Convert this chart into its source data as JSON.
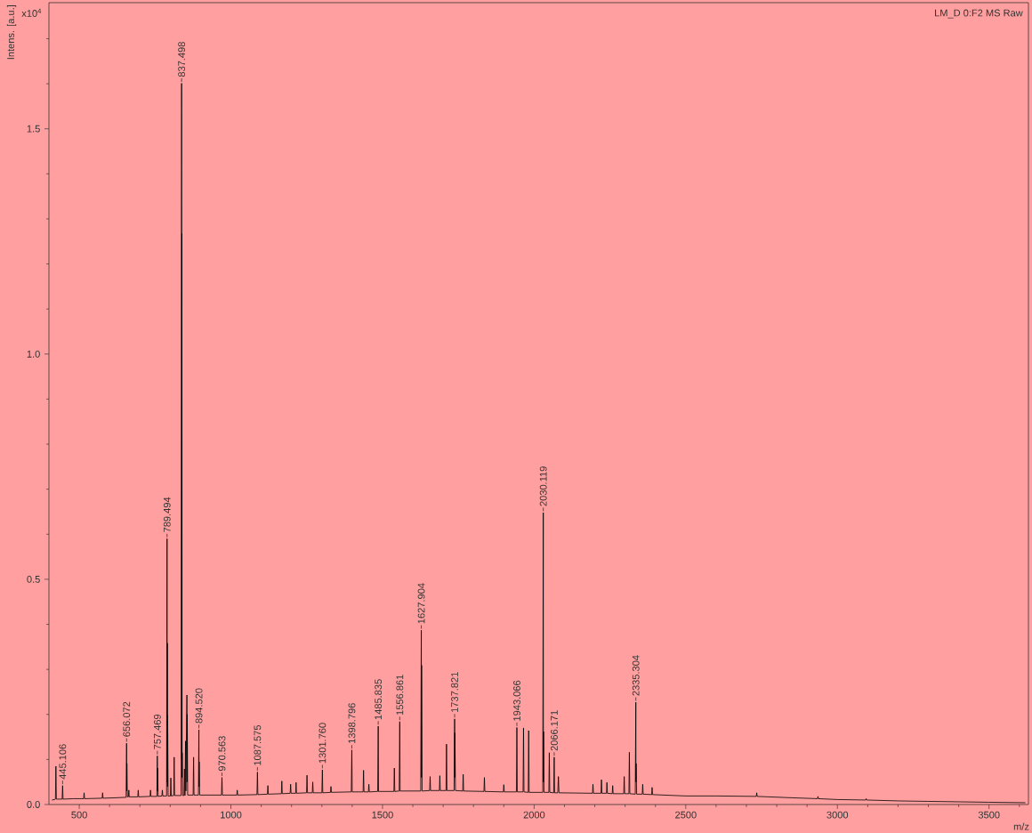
{
  "chart_data": {
    "type": "line",
    "title": "LM_D 0:F2 MS Raw",
    "xlabel": "m/z",
    "ylabel": "Intens. [a.u.]",
    "color": "#000000",
    "annotations": [
      "x10$^{4}$",
      {
        "text": "445.106",
        "x": 445.106,
        "y": 0.042
      },
      {
        "text": "656.072",
        "x": 656.072,
        "y": 0.136
      },
      {
        "text": "757.469",
        "x": 757.469,
        "y": 0.108
      },
      {
        "text": "789.494",
        "x": 789.494,
        "y": 0.59
      },
      {
        "text": "837.498",
        "x": 837.498,
        "y": 1.601
      },
      {
        "text": "894.520",
        "x": 894.52,
        "y": 0.166
      },
      {
        "text": "970.563",
        "x": 970.563,
        "y": 0.06
      },
      {
        "text": "1087.575",
        "x": 1087.575,
        "y": 0.072
      },
      {
        "text": "1301.760",
        "x": 1301.76,
        "y": 0.077
      },
      {
        "text": "1398.796",
        "x": 1398.796,
        "y": 0.121
      },
      {
        "text": "1485.835",
        "x": 1485.835,
        "y": 0.174
      },
      {
        "text": "1556.861",
        "x": 1556.861,
        "y": 0.184
      },
      {
        "text": "1627.904",
        "x": 1627.904,
        "y": 0.387
      },
      {
        "text": "1737.821",
        "x": 1737.821,
        "y": 0.19
      },
      {
        "text": "1943.066",
        "x": 1943.066,
        "y": 0.171
      },
      {
        "text": "2030.119",
        "x": 2030.119,
        "y": 0.648
      },
      {
        "text": "2066.171",
        "x": 2066.171,
        "y": 0.105
      },
      {
        "text": "2335.304",
        "x": 2335.304,
        "y": 0.227
      }
    ],
    "x": [
      410,
      418,
      421.5,
      423,
      424.5,
      443.5,
      445.106,
      446.5,
      480,
      514.5,
      516,
      517.5,
      575.5,
      577,
      578.5,
      620,
      654.5,
      656.072,
      656.6,
      657.1,
      658.5,
      662,
      663.5,
      665,
      693,
      694.5,
      696,
      733.5,
      735,
      736.5,
      756,
      757.469,
      758,
      758.5,
      760,
      772.5,
      774,
      775.5,
      788,
      789.494,
      790,
      790.5,
      791,
      791.5,
      793,
      800.5,
      802,
      803.5,
      811.5,
      813,
      814.5,
      836,
      837.498,
      838,
      838.5,
      839,
      839.5,
      841,
      845.5,
      847,
      848.5,
      850.5,
      851.5,
      855,
      855.5,
      856,
      857.5,
      875.5,
      877,
      878.5,
      893,
      894.52,
      895,
      895.5,
      897,
      969,
      970.563,
      972,
      1019.5,
      1021,
      1022.5,
      1086,
      1087.575,
      1089,
      1120.5,
      1122,
      1123.5,
      1166.5,
      1168,
      1169.5,
      1195.5,
      1197,
      1198.5,
      1213.5,
      1215,
      1216.5,
      1249.5,
      1251,
      1252.5,
      1268.5,
      1270,
      1271.5,
      1300,
      1301.76,
      1303,
      1328.5,
      1330,
      1331.5,
      1397,
      1398.796,
      1400,
      1436,
      1437.5,
      1439,
      1453.5,
      1455,
      1456.5,
      1484,
      1485.835,
      1487,
      1537.5,
      1539,
      1540.5,
      1555,
      1556.861,
      1558,
      1626,
      1627.904,
      1628.4,
      1628.9,
      1630.5,
      1655.5,
      1657,
      1658.5,
      1687.5,
      1689,
      1690.5,
      1709.5,
      1711,
      1712.5,
      1736,
      1737.821,
      1738.3,
      1738.8,
      1740.5,
      1764.5,
      1766,
      1767.5,
      1834.5,
      1836,
      1837.5,
      1898.5,
      1900,
      1901.5,
      1941.5,
      1943.066,
      1944.5,
      1963.5,
      1965,
      1966.5,
      1980.5,
      1982,
      1983.5,
      2028.5,
      2030.119,
      2030.6,
      2031.1,
      2032.5,
      2048.5,
      2050,
      2051.5,
      2064.5,
      2066.171,
      2067.5,
      2078,
      2080,
      2082,
      2192.5,
      2194,
      2195.5,
      2220.5,
      2222,
      2223.5,
      2238.5,
      2240,
      2241.5,
      2257.5,
      2259,
      2260.5,
      2295.5,
      2297,
      2298.5,
      2312.5,
      2314,
      2315.5,
      2333.5,
      2335.304,
      2335.8,
      2336.3,
      2338,
      2356.5,
      2358,
      2359.5,
      2387.5,
      2389,
      2390.5,
      2500,
      2600,
      2732.5,
      2734,
      2735.5,
      2850,
      2934.5,
      2936,
      2937.5,
      3000,
      3093.5,
      3095,
      3096.5,
      3200,
      3300,
      3400,
      3500,
      3620
    ],
    "values": [
      0.01,
      0.011,
      0.012,
      0.085,
      0.012,
      0.012,
      0.042,
      0.012,
      0.013,
      0.013,
      0.026,
      0.013,
      0.014,
      0.026,
      0.014,
      0.015,
      0.016,
      0.136,
      0.03,
      0.091,
      0.017,
      0.017,
      0.032,
      0.017,
      0.017,
      0.032,
      0.017,
      0.018,
      0.032,
      0.018,
      0.018,
      0.108,
      0.03,
      0.081,
      0.018,
      0.019,
      0.032,
      0.019,
      0.019,
      0.59,
      0.05,
      0.358,
      0.04,
      0.198,
      0.019,
      0.019,
      0.059,
      0.019,
      0.02,
      0.105,
      0.02,
      0.02,
      1.601,
      0.1,
      1.267,
      0.06,
      0.115,
      0.02,
      0.02,
      0.079,
      0.02,
      0.141,
      0.03,
      0.243,
      0.05,
      0.2,
      0.021,
      0.021,
      0.105,
      0.021,
      0.021,
      0.166,
      0.04,
      0.095,
      0.021,
      0.021,
      0.06,
      0.021,
      0.021,
      0.032,
      0.021,
      0.022,
      0.072,
      0.022,
      0.023,
      0.042,
      0.023,
      0.024,
      0.052,
      0.024,
      0.025,
      0.045,
      0.025,
      0.025,
      0.049,
      0.025,
      0.026,
      0.065,
      0.026,
      0.026,
      0.05,
      0.026,
      0.026,
      0.077,
      0.026,
      0.027,
      0.04,
      0.027,
      0.028,
      0.121,
      0.028,
      0.028,
      0.076,
      0.028,
      0.028,
      0.045,
      0.028,
      0.029,
      0.174,
      0.029,
      0.029,
      0.081,
      0.029,
      0.03,
      0.184,
      0.03,
      0.03,
      0.387,
      0.06,
      0.309,
      0.03,
      0.031,
      0.062,
      0.031,
      0.031,
      0.064,
      0.031,
      0.031,
      0.134,
      0.031,
      0.031,
      0.19,
      0.06,
      0.159,
      0.031,
      0.03,
      0.067,
      0.03,
      0.029,
      0.06,
      0.029,
      0.028,
      0.044,
      0.028,
      0.028,
      0.171,
      0.028,
      0.028,
      0.17,
      0.028,
      0.027,
      0.164,
      0.027,
      0.027,
      0.648,
      0.05,
      0.162,
      0.027,
      0.027,
      0.115,
      0.027,
      0.026,
      0.105,
      0.026,
      0.026,
      0.062,
      0.026,
      0.025,
      0.045,
      0.025,
      0.025,
      0.055,
      0.025,
      0.025,
      0.049,
      0.025,
      0.024,
      0.042,
      0.024,
      0.024,
      0.062,
      0.024,
      0.024,
      0.116,
      0.024,
      0.023,
      0.227,
      0.05,
      0.091,
      0.023,
      0.023,
      0.045,
      0.023,
      0.022,
      0.038,
      0.022,
      0.019,
      0.019,
      0.018,
      0.026,
      0.018,
      0.015,
      0.013,
      0.018,
      0.013,
      0.011,
      0.01,
      0.013,
      0.01,
      0.008,
      0.007,
      0.006,
      0.005,
      0.004
    ],
    "xlim": [
      400,
      3630
    ],
    "ylim": [
      0,
      1.78
    ],
    "xticks": [
      500,
      {
        "value": 600,
        "label": null
      },
      {
        "value": 700,
        "label": null
      },
      {
        "value": 800,
        "label": null
      },
      {
        "value": 900,
        "label": null
      },
      1000,
      {
        "value": 1100,
        "label": null
      },
      {
        "value": 1200,
        "label": null
      },
      {
        "value": 1300,
        "label": null
      },
      {
        "value": 1400,
        "label": null
      },
      1500,
      {
        "value": 1600,
        "label": null
      },
      {
        "value": 1700,
        "label": null
      },
      {
        "value": 1800,
        "label": null
      },
      {
        "value": 1900,
        "label": null
      },
      2000,
      {
        "value": 2100,
        "label": null
      },
      {
        "value": 2200,
        "label": null
      },
      {
        "value": 2300,
        "label": null
      },
      {
        "value": 2400,
        "label": null
      },
      2500,
      {
        "value": 2600,
        "label": null
      },
      {
        "value": 2700,
        "label": null
      },
      {
        "value": 2800,
        "label": null
      },
      {
        "value": 2900,
        "label": null
      },
      3000,
      {
        "value": 3100,
        "label": null
      },
      {
        "value": 3200,
        "label": null
      },
      {
        "value": 3300,
        "label": null
      },
      {
        "value": 3400,
        "label": null
      },
      3500,
      {
        "value": 3600,
        "label": null
      }
    ],
    "yticks": [
      {
        "value": 0,
        "label": "0.0"
      },
      {
        "value": 0.1,
        "label": null
      },
      {
        "value": 0.2,
        "label": null
      },
      {
        "value": 0.3,
        "label": null
      },
      {
        "value": 0.4,
        "label": null
      },
      0.5,
      {
        "value": 0.6,
        "label": null
      },
      {
        "value": 0.7,
        "label": null
      },
      {
        "value": 0.8,
        "label": null
      },
      {
        "value": 0.9,
        "label": null
      },
      {
        "value": 1,
        "label": "1.0"
      },
      {
        "value": 1.1,
        "label": null
      },
      {
        "value": 1.2,
        "label": null
      },
      {
        "value": 1.3,
        "label": null
      },
      {
        "value": 1.4,
        "label": null
      },
      1.5,
      {
        "value": 1.6,
        "label": null
      },
      {
        "value": 1.7,
        "label": null
      }
    ]
  }
}
